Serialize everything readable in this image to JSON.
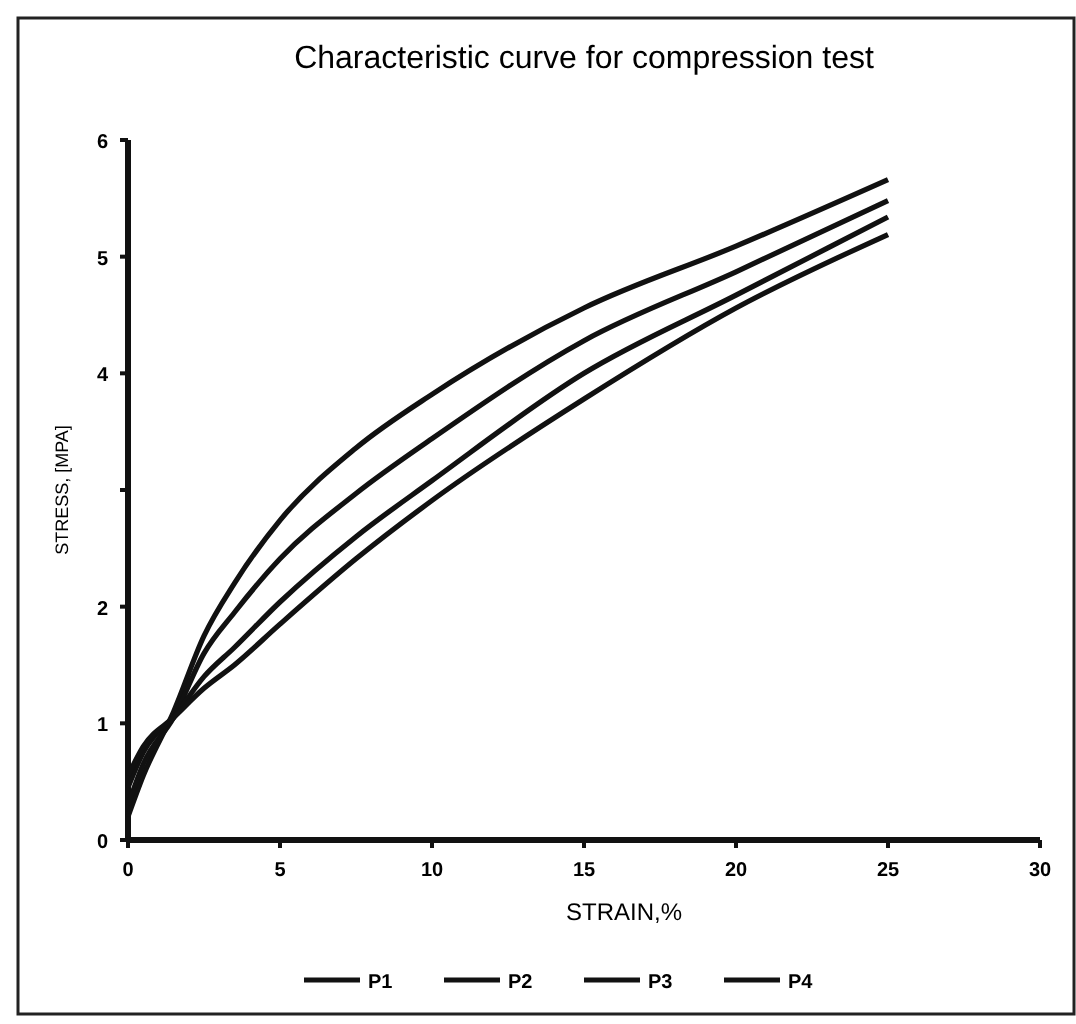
{
  "chart_data": {
    "type": "line",
    "title": "Characteristic curve for compression test",
    "xlabel": "STRAIN,%",
    "ylabel": "STRESS, [MPA]",
    "xlim": [
      0,
      30
    ],
    "xticks": [
      0,
      5,
      10,
      15,
      20,
      25,
      30
    ],
    "ylim": [
      0,
      6
    ],
    "yticks": [
      0,
      1,
      2,
      {
        "value": 3,
        "label": null
      },
      4,
      5,
      6
    ],
    "x": [
      0,
      0.5,
      1.5,
      2.5,
      3.5,
      5,
      7.5,
      10,
      15,
      20,
      25
    ],
    "legend": "bottom",
    "marker": "none",
    "line_style": "solid",
    "series": [
      {
        "name": "P1",
        "color": "#111111",
        "values": [
          0.2,
          0.55,
          1.1,
          1.75,
          2.2,
          2.74,
          3.36,
          3.82,
          4.56,
          5.09,
          5.66
        ]
      },
      {
        "name": "P2",
        "color": "#111111",
        "values": [
          0.3,
          0.65,
          1.05,
          1.6,
          1.95,
          2.41,
          2.97,
          3.44,
          4.28,
          4.87,
          5.48
        ]
      },
      {
        "name": "P3",
        "color": "#111111",
        "values": [
          0.45,
          0.75,
          1.05,
          1.4,
          1.65,
          2.04,
          2.6,
          3.08,
          4.0,
          4.67,
          5.34
        ]
      },
      {
        "name": "P4",
        "color": "#111111",
        "values": [
          0.55,
          0.8,
          1.05,
          1.3,
          1.5,
          1.85,
          2.41,
          2.91,
          3.78,
          4.56,
          5.19
        ]
      }
    ]
  }
}
